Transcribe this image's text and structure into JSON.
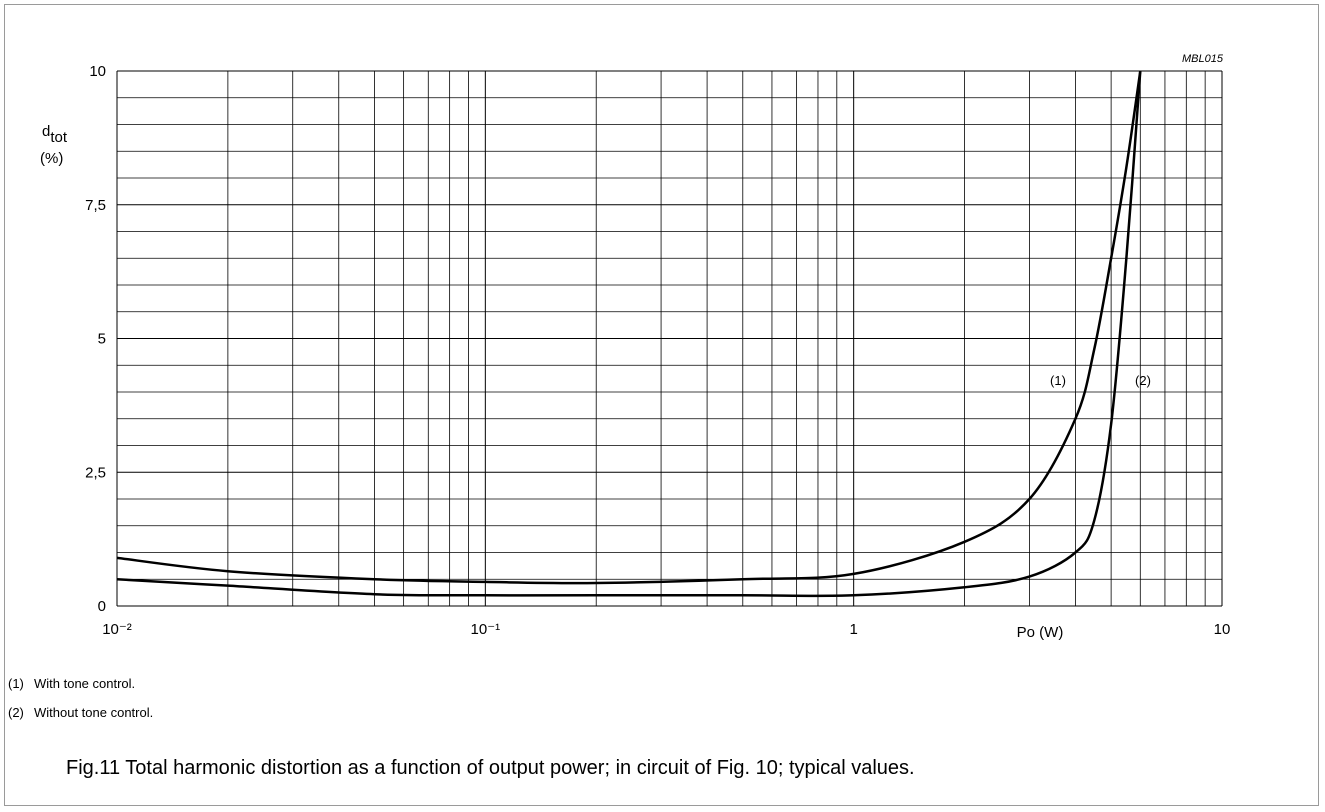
{
  "chart_data": {
    "type": "line",
    "code": "MBL015",
    "y_label": {
      "symbol": "d",
      "subscript": "tot",
      "unit": "(%)"
    },
    "x_label": "Po (W)",
    "x": [
      0.01,
      0.02,
      0.05,
      0.1,
      0.2,
      0.5,
      1,
      2,
      3,
      4,
      4.5,
      5,
      5.5,
      6
    ],
    "series": [
      {
        "name": "(1)",
        "color": "#000000",
        "values": [
          0.9,
          0.65,
          0.5,
          0.45,
          0.43,
          0.5,
          0.6,
          1.2,
          2.0,
          3.5,
          4.8,
          6.5,
          8.2,
          10
        ]
      },
      {
        "name": "(2)",
        "color": "#000000",
        "values": [
          0.5,
          0.38,
          0.22,
          0.2,
          0.2,
          0.2,
          0.2,
          0.35,
          0.55,
          1.0,
          1.6,
          3.4,
          6.5,
          10
        ]
      }
    ],
    "xlim": [
      0.01,
      10
    ],
    "ylim": [
      0,
      10
    ],
    "x_log": true,
    "xticks": [
      {
        "value": 0.01,
        "label": "10⁻²"
      },
      {
        "value": 0.1,
        "label": "10⁻¹"
      },
      1,
      10
    ],
    "yticks": [
      0,
      {
        "value": 2.5,
        "label": "2,5"
      },
      5,
      {
        "value": 7.5,
        "label": "7,5"
      },
      10
    ],
    "x_minor_grid": [
      0.02,
      0.03,
      0.04,
      0.05,
      0.06,
      0.07,
      0.08,
      0.09,
      0.2,
      0.3,
      0.4,
      0.5,
      0.6,
      0.7,
      0.8,
      0.9,
      2,
      3,
      4,
      5,
      6,
      7,
      8,
      9
    ],
    "y_minor_grid": [
      0.5,
      1,
      1.5,
      2,
      3,
      3.5,
      4,
      4.5,
      5.5,
      6,
      6.5,
      7,
      8,
      8.5,
      9,
      9.5
    ],
    "grid": true,
    "notes": [
      {
        "marker": "(1)",
        "text": "With tone control."
      },
      {
        "marker": "(2)",
        "text": "Without tone control."
      }
    ],
    "caption": "Fig.11  Total harmonic distortion as a function of output power; in circuit of Fig. 10; typical values."
  }
}
